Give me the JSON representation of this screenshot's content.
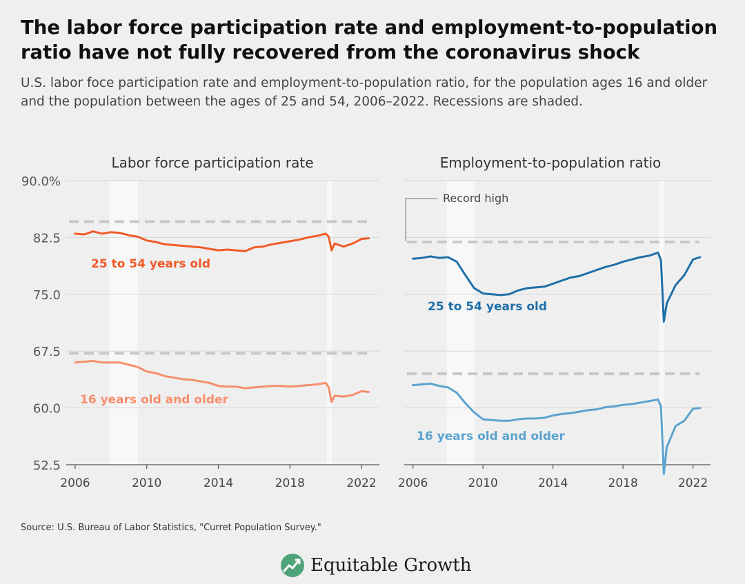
{
  "title": "The labor force participation rate and employment-to-population ratio have not fully recovered from the coronavirus shock",
  "subtitle": "U.S. labor foce participation rate and employment-to-population ratio, for the population ages 16 and older and the population between the ages of 25 and 54, 2006–2022. Recessions are shaded.",
  "source": "Source: U.S. Bureau of Labor Statistics, \"Curret Population Survey.\"",
  "brand": "Equitable Growth",
  "colors": {
    "lfpr_prime": "#f05a28",
    "lfpr_all": "#f58f6b",
    "epop_prime": "#1f6fa8",
    "epop_all": "#5ba3cf",
    "reference": "#c8c8c8",
    "recession": "#f8f8f8",
    "logo": "#4fa37a"
  },
  "chart_data": [
    {
      "type": "line",
      "title": "Labor force participation rate",
      "ylim": [
        52.5,
        90
      ],
      "yticks": [
        "90.0%",
        "82.5",
        "75.0",
        "67.5",
        "60.0",
        "52.5"
      ],
      "ytick_values": [
        90,
        82.5,
        75,
        67.5,
        60,
        52.5
      ],
      "xlim": [
        2005.5,
        2023
      ],
      "xticks": [
        "2006",
        "2010",
        "2014",
        "2018",
        "2022"
      ],
      "xtick_values": [
        2006,
        2010,
        2014,
        2018,
        2022
      ],
      "recessions": [
        [
          2007.92,
          2009.5
        ],
        [
          2020.08,
          2020.33
        ]
      ],
      "reference_lines": [
        {
          "series": "25 to 54 years old",
          "y": 84.6
        },
        {
          "series": "16 years old and older",
          "y": 67.2
        }
      ],
      "series": [
        {
          "name": "25 to 54 years old",
          "color_key": "lfpr_prime",
          "points": [
            [
              2006.0,
              83.0
            ],
            [
              2006.5,
              82.9
            ],
            [
              2007.0,
              83.3
            ],
            [
              2007.5,
              83.0
            ],
            [
              2008.0,
              83.2
            ],
            [
              2008.5,
              83.1
            ],
            [
              2009.0,
              82.8
            ],
            [
              2009.5,
              82.6
            ],
            [
              2010.0,
              82.1
            ],
            [
              2010.5,
              81.9
            ],
            [
              2011.0,
              81.6
            ],
            [
              2011.5,
              81.5
            ],
            [
              2012.0,
              81.4
            ],
            [
              2012.5,
              81.3
            ],
            [
              2013.0,
              81.2
            ],
            [
              2013.5,
              81.0
            ],
            [
              2014.0,
              80.8
            ],
            [
              2014.5,
              80.9
            ],
            [
              2015.0,
              80.8
            ],
            [
              2015.5,
              80.7
            ],
            [
              2016.0,
              81.2
            ],
            [
              2016.5,
              81.3
            ],
            [
              2017.0,
              81.6
            ],
            [
              2017.5,
              81.8
            ],
            [
              2018.0,
              82.0
            ],
            [
              2018.5,
              82.2
            ],
            [
              2019.0,
              82.5
            ],
            [
              2019.5,
              82.7
            ],
            [
              2020.0,
              83.0
            ],
            [
              2020.17,
              82.6
            ],
            [
              2020.33,
              80.8
            ],
            [
              2020.5,
              81.7
            ],
            [
              2021.0,
              81.3
            ],
            [
              2021.5,
              81.7
            ],
            [
              2022.0,
              82.3
            ],
            [
              2022.4,
              82.4
            ]
          ]
        },
        {
          "name": "16 years old and older",
          "color_key": "lfpr_all",
          "points": [
            [
              2006.0,
              66.0
            ],
            [
              2006.5,
              66.1
            ],
            [
              2007.0,
              66.2
            ],
            [
              2007.5,
              66.0
            ],
            [
              2008.0,
              66.0
            ],
            [
              2008.5,
              66.0
            ],
            [
              2009.0,
              65.7
            ],
            [
              2009.5,
              65.4
            ],
            [
              2010.0,
              64.8
            ],
            [
              2010.5,
              64.6
            ],
            [
              2011.0,
              64.2
            ],
            [
              2011.5,
              64.0
            ],
            [
              2012.0,
              63.8
            ],
            [
              2012.5,
              63.7
            ],
            [
              2013.0,
              63.5
            ],
            [
              2013.5,
              63.3
            ],
            [
              2014.0,
              62.9
            ],
            [
              2014.5,
              62.8
            ],
            [
              2015.0,
              62.8
            ],
            [
              2015.5,
              62.6
            ],
            [
              2016.0,
              62.7
            ],
            [
              2016.5,
              62.8
            ],
            [
              2017.0,
              62.9
            ],
            [
              2017.5,
              62.9
            ],
            [
              2018.0,
              62.8
            ],
            [
              2018.5,
              62.9
            ],
            [
              2019.0,
              63.0
            ],
            [
              2019.5,
              63.1
            ],
            [
              2020.0,
              63.3
            ],
            [
              2020.17,
              62.7
            ],
            [
              2020.33,
              60.8
            ],
            [
              2020.5,
              61.6
            ],
            [
              2021.0,
              61.5
            ],
            [
              2021.5,
              61.7
            ],
            [
              2022.0,
              62.2
            ],
            [
              2022.4,
              62.1
            ]
          ]
        }
      ],
      "labels": [
        {
          "text": "25 to 54 years old",
          "series": "25 to 54 years old"
        },
        {
          "text": "16 years old and older",
          "series": "16 years old and older"
        }
      ]
    },
    {
      "type": "line",
      "title": "Employment-to-population ratio",
      "ylim": [
        52.5,
        90
      ],
      "xlim": [
        2005.5,
        2023
      ],
      "xticks": [
        "2006",
        "2010",
        "2014",
        "2018",
        "2022"
      ],
      "xtick_values": [
        2006,
        2010,
        2014,
        2018,
        2022
      ],
      "recessions": [
        [
          2007.92,
          2009.5
        ],
        [
          2020.08,
          2020.33
        ]
      ],
      "annotation": "Record high",
      "reference_lines": [
        {
          "series": "25 to 54 years old",
          "y": 81.9
        },
        {
          "series": "16 years old and older",
          "y": 64.5
        }
      ],
      "series": [
        {
          "name": "25 to 54 years old",
          "color_key": "epop_prime",
          "points": [
            [
              2006.0,
              79.7
            ],
            [
              2006.5,
              79.8
            ],
            [
              2007.0,
              80.0
            ],
            [
              2007.5,
              79.8
            ],
            [
              2008.0,
              79.9
            ],
            [
              2008.5,
              79.3
            ],
            [
              2009.0,
              77.5
            ],
            [
              2009.5,
              75.8
            ],
            [
              2010.0,
              75.1
            ],
            [
              2010.5,
              75.0
            ],
            [
              2011.0,
              74.9
            ],
            [
              2011.5,
              75.0
            ],
            [
              2012.0,
              75.5
            ],
            [
              2012.5,
              75.8
            ],
            [
              2013.0,
              75.9
            ],
            [
              2013.5,
              76.0
            ],
            [
              2014.0,
              76.4
            ],
            [
              2014.5,
              76.8
            ],
            [
              2015.0,
              77.2
            ],
            [
              2015.5,
              77.4
            ],
            [
              2016.0,
              77.8
            ],
            [
              2016.5,
              78.2
            ],
            [
              2017.0,
              78.6
            ],
            [
              2017.5,
              78.9
            ],
            [
              2018.0,
              79.3
            ],
            [
              2018.5,
              79.6
            ],
            [
              2019.0,
              79.9
            ],
            [
              2019.5,
              80.1
            ],
            [
              2020.0,
              80.5
            ],
            [
              2020.17,
              79.5
            ],
            [
              2020.33,
              71.4
            ],
            [
              2020.5,
              73.8
            ],
            [
              2021.0,
              76.2
            ],
            [
              2021.5,
              77.5
            ],
            [
              2022.0,
              79.6
            ],
            [
              2022.4,
              79.9
            ]
          ]
        },
        {
          "name": "16 years old and older",
          "color_key": "epop_all",
          "points": [
            [
              2006.0,
              63.0
            ],
            [
              2006.5,
              63.1
            ],
            [
              2007.0,
              63.2
            ],
            [
              2007.5,
              62.9
            ],
            [
              2008.0,
              62.7
            ],
            [
              2008.5,
              62.0
            ],
            [
              2009.0,
              60.6
            ],
            [
              2009.5,
              59.4
            ],
            [
              2010.0,
              58.5
            ],
            [
              2010.5,
              58.4
            ],
            [
              2011.0,
              58.3
            ],
            [
              2011.5,
              58.3
            ],
            [
              2012.0,
              58.5
            ],
            [
              2012.5,
              58.6
            ],
            [
              2013.0,
              58.6
            ],
            [
              2013.5,
              58.7
            ],
            [
              2014.0,
              59.0
            ],
            [
              2014.5,
              59.2
            ],
            [
              2015.0,
              59.3
            ],
            [
              2015.5,
              59.5
            ],
            [
              2016.0,
              59.7
            ],
            [
              2016.5,
              59.8
            ],
            [
              2017.0,
              60.1
            ],
            [
              2017.5,
              60.2
            ],
            [
              2018.0,
              60.4
            ],
            [
              2018.5,
              60.5
            ],
            [
              2019.0,
              60.7
            ],
            [
              2019.5,
              60.9
            ],
            [
              2020.0,
              61.1
            ],
            [
              2020.17,
              60.2
            ],
            [
              2020.33,
              51.3
            ],
            [
              2020.5,
              54.8
            ],
            [
              2021.0,
              57.6
            ],
            [
              2021.5,
              58.3
            ],
            [
              2022.0,
              59.9
            ],
            [
              2022.4,
              60.0
            ]
          ]
        }
      ],
      "labels": [
        {
          "text": "25 to 54 years old",
          "series": "25 to 54 years old"
        },
        {
          "text": "16 years old and older",
          "series": "16 years old and older"
        }
      ]
    }
  ]
}
